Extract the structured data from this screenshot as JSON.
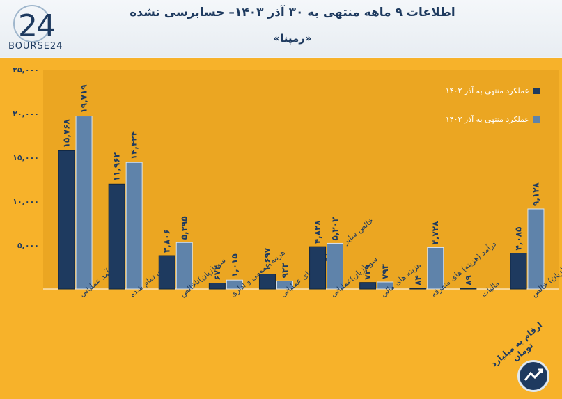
{
  "header": {
    "logo_text": "BOURSE24",
    "title": "اطلاعات ۹ ماهه منتهی به ۳۰ آذر ۱۴۰۳– حسابرسی نشده",
    "subtitle": "«رمپنا»"
  },
  "footer": {
    "note": "ارقام به میلیارد تومان",
    "badge_icon": "trend-circle-icon"
  },
  "colors": {
    "frame": "#f7b22a",
    "plot_bg": "#eba622",
    "series_1402": "#1e3a5f",
    "series_1403": "#5f83aa"
  },
  "chart_data": {
    "type": "bar",
    "title": "اطلاعات ۹ ماهه منتهی به ۳۰ آذر ۱۴۰۳– حسابرسی نشده",
    "ylim": [
      0,
      25000
    ],
    "yticks": [
      0,
      5000,
      10000,
      15000,
      20000,
      25000
    ],
    "ytick_labels": [
      "",
      "۵,۰۰۰",
      "۱۰,۰۰۰",
      "۱۵,۰۰۰",
      "۲۰,۰۰۰",
      "۲۵,۰۰۰"
    ],
    "legend_position": "top-right",
    "grid": false,
    "categories": [
      "درآمد عملیاتی",
      "بهای تمام شده",
      "سود(زیان)ناخالص",
      "هزینه عمومی و اداری",
      "خالص سایر درآمد(هزینه)های عملیاتی",
      "سود(زیان)عملیاتی",
      "هزینه های مالی",
      "درآمد (هزینه) های متفرقه",
      "مالیات",
      "سود(زیان) خالص"
    ],
    "series": [
      {
        "name": "عملکرد منتهی به آذر ۱۴۰۲",
        "values": [
          15768,
          11962,
          3806,
          674,
          1697,
          4828,
          739,
          84,
          89,
          4085
        ],
        "labels": [
          "۱۵,۷۶۸",
          "۱۱,۹۶۲",
          "۳,۸۰۶",
          "۶۷۴",
          "۱,۶۹۷",
          "۴,۸۲۸",
          "۷۳۹",
          "۸۴",
          "۸۹",
          "۴,۰۸۵"
        ]
      },
      {
        "name": "عملکرد منتهی به آذر ۱۴۰۳",
        "values": [
          19719,
          14424,
          5295,
          1015,
          923,
          5202,
          793,
          4728,
          0,
          9128
        ],
        "labels": [
          "۱۹,۷۱۹",
          "۱۴,۴۲۴",
          "۵,۲۹۵",
          "۱,۰۱۵",
          "۹۲۳",
          "۵,۲۰۲",
          "۷۹۳",
          "۴,۷۲۸",
          "",
          "۹,۱۲۸"
        ]
      }
    ]
  }
}
